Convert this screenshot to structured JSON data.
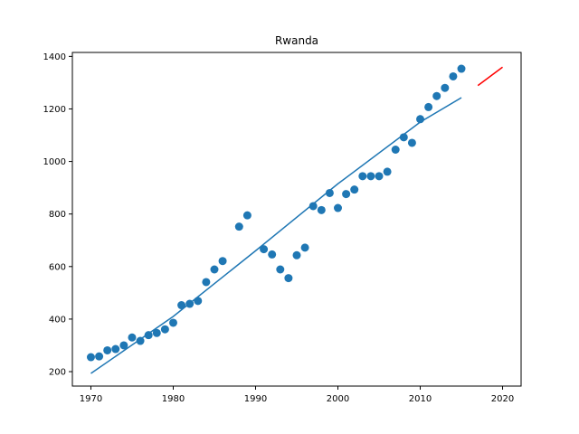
{
  "chart_data": {
    "type": "scatter",
    "title": "Rwanda",
    "xlabel": "",
    "ylabel": "",
    "xlim": [
      1967.75,
      2022.25
    ],
    "ylim": [
      145,
      1415
    ],
    "xticks": [
      1970,
      1980,
      1990,
      2000,
      2010,
      2020
    ],
    "yticks": [
      200,
      400,
      600,
      800,
      1000,
      1200,
      1400
    ],
    "grid": false,
    "legend": "none",
    "colors": {
      "points": "#1f77b4",
      "fit": "#1f77b4",
      "forecast": "#ff0000"
    },
    "series": [
      {
        "type": "scatter",
        "points": [
          [
            1970,
            255
          ],
          [
            1971,
            258
          ],
          [
            1972,
            281
          ],
          [
            1973,
            286
          ],
          [
            1974,
            300
          ],
          [
            1975,
            330
          ],
          [
            1976,
            317
          ],
          [
            1977,
            339
          ],
          [
            1978,
            347
          ],
          [
            1979,
            361
          ],
          [
            1980,
            386
          ],
          [
            1981,
            453
          ],
          [
            1982,
            458
          ],
          [
            1983,
            469
          ],
          [
            1984,
            541
          ],
          [
            1985,
            589
          ],
          [
            1986,
            621
          ],
          [
            1988,
            752
          ],
          [
            1989,
            795
          ],
          [
            1991,
            666
          ],
          [
            1992,
            646
          ],
          [
            1993,
            589
          ],
          [
            1994,
            556
          ],
          [
            1995,
            643
          ],
          [
            1996,
            672
          ],
          [
            1997,
            830
          ],
          [
            1998,
            815
          ],
          [
            1999,
            880
          ],
          [
            2000,
            823
          ],
          [
            2001,
            876
          ],
          [
            2002,
            893
          ],
          [
            2003,
            944
          ],
          [
            2004,
            944
          ],
          [
            2005,
            944
          ],
          [
            2006,
            961
          ],
          [
            2007,
            1045
          ],
          [
            2008,
            1092
          ],
          [
            2009,
            1071
          ],
          [
            2010,
            1161
          ],
          [
            2011,
            1207
          ],
          [
            2012,
            1249
          ],
          [
            2013,
            1280
          ],
          [
            2014,
            1324
          ],
          [
            2015,
            1353
          ]
        ]
      },
      {
        "type": "line",
        "points": [
          [
            1970,
            193
          ],
          [
            1980,
            410
          ],
          [
            1990,
            660
          ],
          [
            2000,
            915
          ],
          [
            2010,
            1150
          ],
          [
            2015,
            1243
          ]
        ]
      },
      {
        "type": "line",
        "points": [
          [
            2017,
            1289
          ],
          [
            2020,
            1359
          ]
        ]
      }
    ]
  }
}
